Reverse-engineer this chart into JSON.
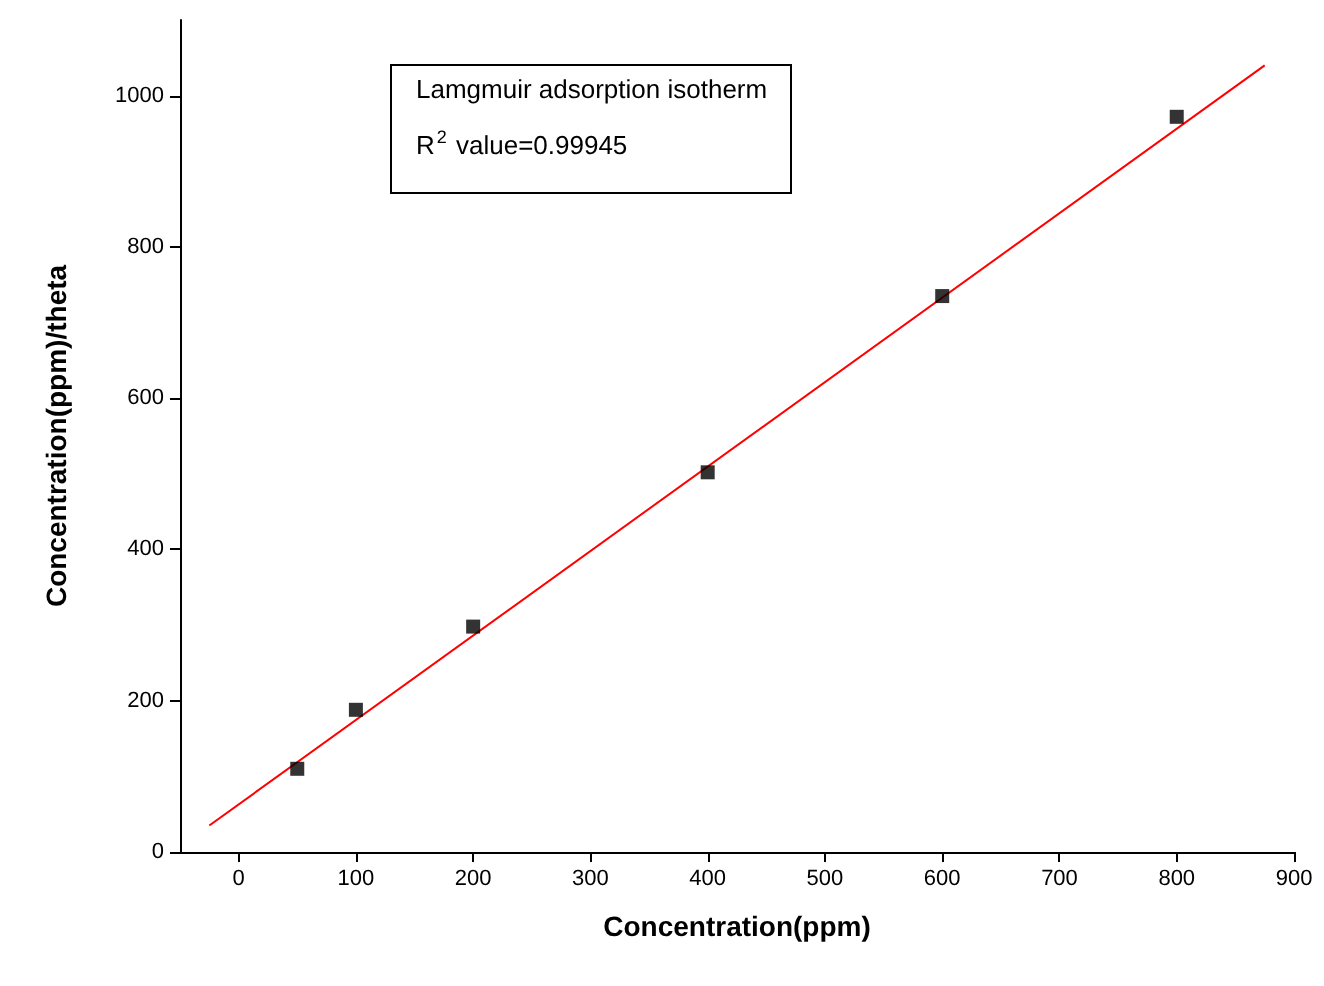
{
  "chart_data": {
    "type": "scatter",
    "xlabel": "Concentration(ppm)",
    "ylabel": "Concentration(ppm)/theta",
    "annotations": [
      "Lamgmuir adsorption isotherm",
      "R$^{2}$ value=0.99945"
    ],
    "series": [
      {
        "color": "#000000",
        "marker": "square",
        "x": [
          50,
          100,
          200,
          400,
          600,
          800
        ],
        "values": [
          110,
          188,
          298,
          502,
          735,
          972
        ]
      },
      {
        "type": "line",
        "color": "#ff0000",
        "marker": "none",
        "line_style": "solid",
        "x": [
          -25,
          875
        ],
        "values": [
          35,
          1040
        ]
      }
    ],
    "xlim": [
      -50,
      900
    ],
    "xticks": [
      0,
      100,
      200,
      300,
      400,
      500,
      600,
      700,
      800,
      900
    ],
    "ylim": [
      0,
      1100
    ],
    "yticks": [
      0,
      200,
      400,
      600,
      800,
      1000
    ],
    "grid": false
  }
}
